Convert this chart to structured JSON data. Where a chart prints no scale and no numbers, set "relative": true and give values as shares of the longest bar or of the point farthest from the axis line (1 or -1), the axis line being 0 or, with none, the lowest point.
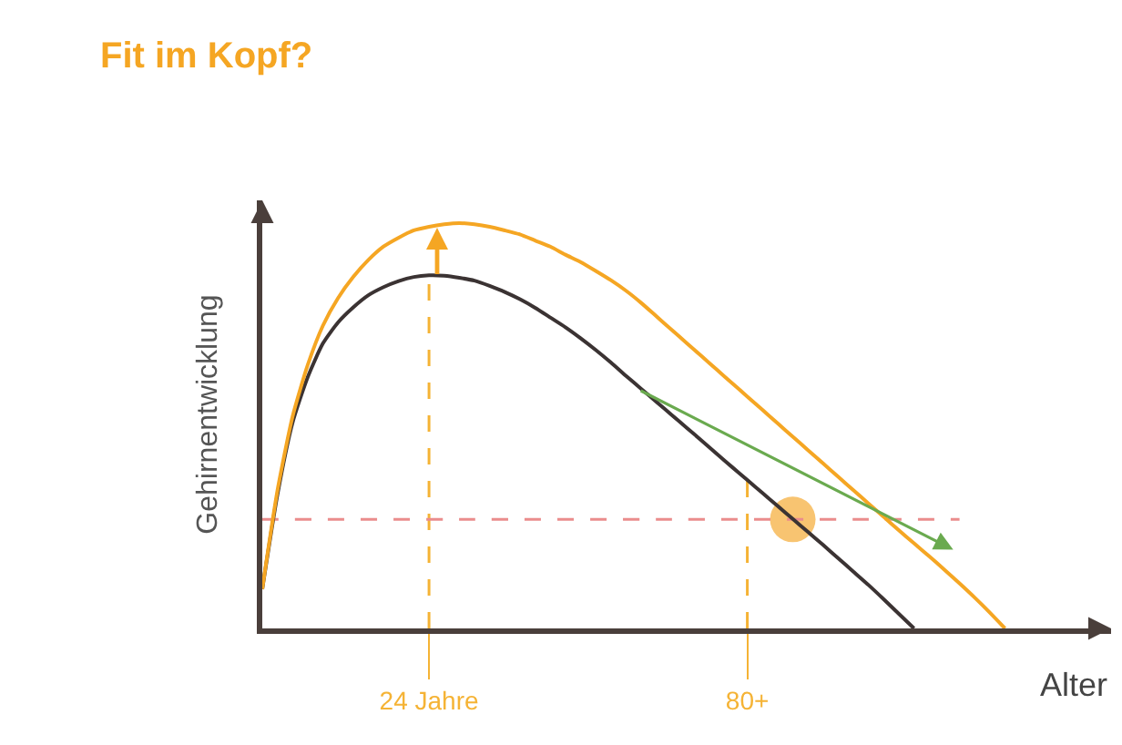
{
  "chart_data": {
    "type": "line",
    "title": "Fit im Kopf?",
    "xlabel": "Alter",
    "ylabel": "Gehirnentwicklung",
    "relative": true,
    "categories": [
      null,
      null,
      null,
      null,
      null,
      null,
      null,
      null,
      null,
      null,
      null,
      "24 Jahre",
      null,
      null,
      null,
      null,
      null,
      null,
      null,
      null,
      null,
      null,
      null,
      null,
      null,
      null,
      null,
      null,
      null,
      null,
      null,
      null,
      "80+",
      null,
      null,
      null,
      null,
      null,
      null,
      null,
      null,
      null,
      null,
      null,
      null,
      null,
      null,
      null,
      null,
      null,
      null,
      null,
      null,
      null,
      null,
      null,
      null
    ],
    "series": [
      {
        "type": "scatter",
        "marker": "circle",
        "color": "#f8c471",
        "values": [
          null,
          null,
          null,
          null,
          null,
          null,
          null,
          null,
          null,
          null,
          null,
          null,
          null,
          null,
          null,
          null,
          null,
          null,
          null,
          null,
          null,
          null,
          null,
          null,
          null,
          null,
          null,
          null,
          null,
          null,
          null,
          null,
          null,
          null,
          null,
          0.269,
          null,
          null,
          null,
          null,
          null,
          null,
          null,
          null,
          null,
          null,
          null,
          null,
          null,
          null,
          null,
          null,
          null,
          null,
          null,
          null,
          null
        ]
      },
      {
        "color": "#f5b335",
        "line_style": "dashed",
        "x": [
          "24 Jahre",
          "24 Jahre"
        ],
        "values": [
          0,
          0.871
        ]
      },
      {
        "color": "#f5b335",
        "line_style": "dashed",
        "x": [
          "80+",
          "80+"
        ],
        "values": [
          0,
          0.37
        ]
      },
      {
        "color": "#ea8c8c",
        "line_style": "dashed",
        "values": [
          0.269,
          0.269,
          0.269,
          0.269,
          0.269,
          0.269,
          0.269,
          0.269,
          0.269,
          0.269,
          0.269,
          0.269,
          0.269,
          0.269,
          0.269,
          0.269,
          0.269,
          0.269,
          0.269,
          0.269,
          0.269,
          0.269,
          0.269,
          0.269,
          0.269,
          0.269,
          0.269,
          0.269,
          0.269,
          0.269,
          0.269,
          0.269,
          0.269,
          0.269,
          0.269,
          0.269,
          0.269,
          0.269,
          0.269,
          0.269,
          0.269,
          0.269,
          0.269,
          0.269,
          0.269,
          0.269,
          0.269,
          null,
          null,
          null,
          null,
          null,
          null,
          null,
          null,
          null,
          null
        ]
      },
      {
        "color": "#3b3333",
        "values": [
          0.097,
          0.33,
          0.508,
          0.62,
          0.703,
          0.755,
          0.792,
          0.822,
          0.842,
          0.857,
          0.867,
          0.871,
          0.87,
          0.865,
          0.858,
          0.845,
          0.83,
          0.812,
          0.791,
          0.767,
          0.743,
          0.716,
          0.687,
          0.656,
          0.623,
          0.591,
          0.559,
          0.527,
          0.495,
          0.463,
          0.43,
          0.398,
          0.366,
          0.334,
          0.302,
          0.27,
          0.238,
          0.206,
          0.173,
          0.14,
          0.107,
          0.072,
          0.036,
          0,
          null,
          null,
          null,
          null,
          null,
          null,
          null,
          null,
          null,
          null,
          null,
          null,
          null
        ]
      },
      {
        "color": "#f5a623",
        "values": [
          0.097,
          0.34,
          0.523,
          0.65,
          0.747,
          0.815,
          0.867,
          0.909,
          0.942,
          0.964,
          0.982,
          0.991,
          0.997,
          1,
          0.997,
          0.991,
          0.982,
          0.972,
          0.957,
          0.942,
          0.922,
          0.904,
          0.882,
          0.859,
          0.833,
          0.803,
          0.77,
          0.737,
          0.704,
          0.671,
          0.638,
          0.605,
          0.572,
          0.539,
          0.506,
          0.473,
          0.44,
          0.407,
          0.374,
          0.341,
          0.308,
          0.275,
          0.242,
          0.21,
          0.178,
          0.145,
          0.111,
          0.076,
          0.039,
          0,
          null,
          null,
          null,
          null,
          null,
          null,
          null
        ]
      }
    ]
  }
}
